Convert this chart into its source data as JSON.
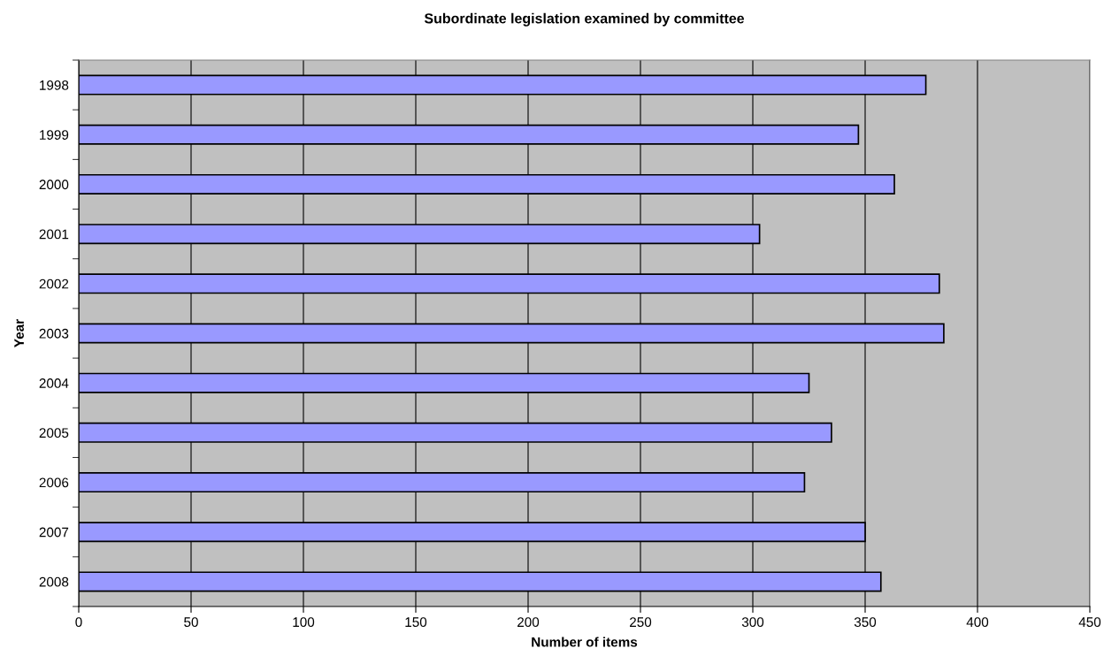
{
  "chart_data": {
    "type": "bar",
    "orientation": "horizontal",
    "title": "Subordinate legislation examined by committee",
    "xlabel": "Number of items",
    "ylabel": "Year",
    "categories": [
      "1998",
      "1999",
      "2000",
      "2001",
      "2002",
      "2003",
      "2004",
      "2005",
      "2006",
      "2007",
      "2008"
    ],
    "values": [
      377,
      347,
      363,
      303,
      383,
      385,
      325,
      335,
      323,
      350,
      357
    ],
    "color": "#9999ff",
    "xlim": [
      0,
      450
    ],
    "xticks": [
      0,
      50,
      100,
      150,
      200,
      250,
      300,
      350,
      400,
      450
    ],
    "grid": "x",
    "legend": false
  }
}
